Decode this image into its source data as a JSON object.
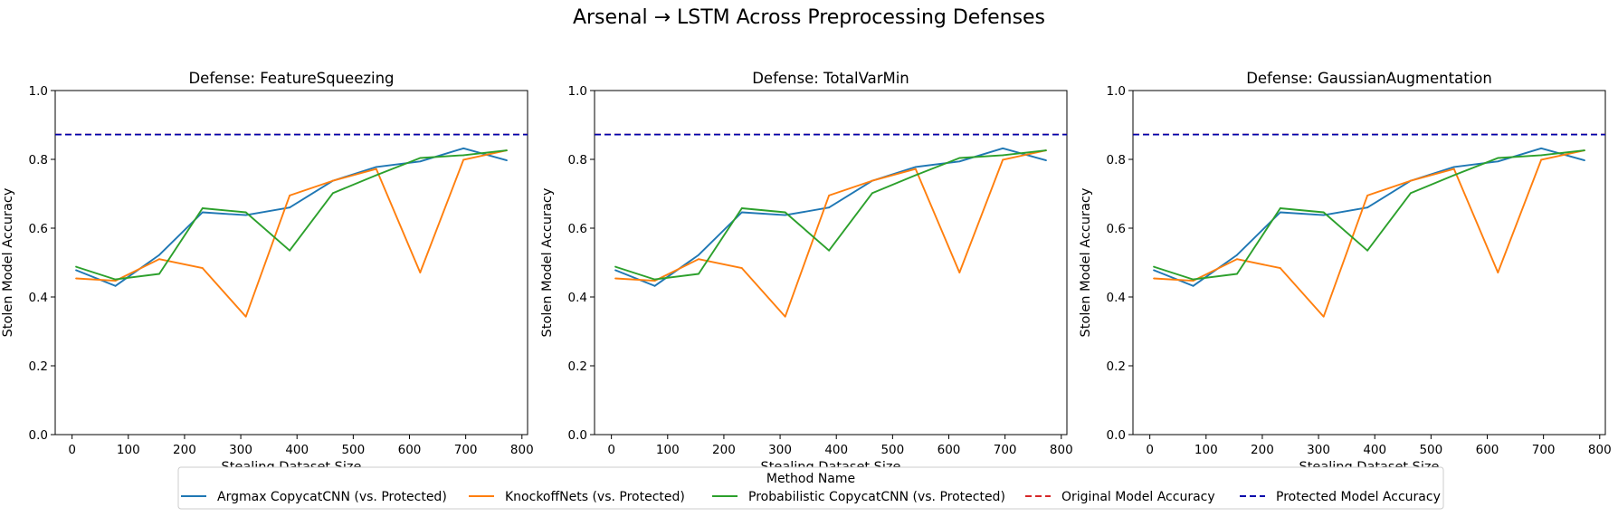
{
  "figure": {
    "title": "Arsenal → LSTM Across Preprocessing Defenses"
  },
  "legend": {
    "title": "Method Name",
    "entries": [
      {
        "label": "Argmax CopycatCNN (vs. Protected)",
        "color": "#1f77b4",
        "style": "solid"
      },
      {
        "label": "KnockoffNets (vs. Protected)",
        "color": "#ff7f0e",
        "style": "solid"
      },
      {
        "label": "Probabilistic CopycatCNN (vs. Protected)",
        "color": "#2ca02c",
        "style": "solid"
      },
      {
        "label": "Original Model Accuracy",
        "color": "#d62728",
        "style": "dashed"
      },
      {
        "label": "Protected Model Accuracy",
        "color": "#0000aa",
        "style": "dashed"
      }
    ],
    "placement": "bottom-center"
  },
  "chart_data": [
    {
      "type": "line",
      "title": "Defense: FeatureSqueezing",
      "xlabel": "Stealing Dataset Size",
      "ylabel": "Stolen Model Accuracy",
      "xlim": [
        -30,
        810
      ],
      "ylim": [
        0,
        1.0
      ],
      "xticks": [
        0,
        100,
        200,
        300,
        400,
        500,
        600,
        700,
        800
      ],
      "yticks": [
        0.0,
        0.2,
        0.4,
        0.6,
        0.8,
        1.0
      ],
      "x": [
        7,
        77,
        155,
        232,
        309,
        387,
        464,
        541,
        619,
        696,
        773
      ],
      "series": [
        {
          "name": "Argmax CopycatCNN (vs. Protected)",
          "color": "#1f77b4",
          "values": [
            0.478,
            0.432,
            0.522,
            0.646,
            0.638,
            0.66,
            0.738,
            0.778,
            0.794,
            0.832,
            0.797
          ]
        },
        {
          "name": "KnockoffNets (vs. Protected)",
          "color": "#ff7f0e",
          "values": [
            0.454,
            0.447,
            0.51,
            0.484,
            0.343,
            0.695,
            0.738,
            0.772,
            0.471,
            0.799,
            0.826
          ]
        },
        {
          "name": "Probabilistic CopycatCNN (vs. Protected)",
          "color": "#2ca02c",
          "values": [
            0.488,
            0.451,
            0.467,
            0.658,
            0.646,
            0.535,
            0.702,
            0.754,
            0.804,
            0.812,
            0.826
          ]
        }
      ],
      "hlines": [
        {
          "name": "Original Model Accuracy",
          "color": "#d62728",
          "value": 0.872
        },
        {
          "name": "Protected Model Accuracy",
          "color": "#0000aa",
          "value": 0.872
        }
      ]
    },
    {
      "type": "line",
      "title": "Defense: TotalVarMin",
      "xlabel": "Stealing Dataset Size",
      "ylabel": "Stolen Model Accuracy",
      "xlim": [
        -30,
        810
      ],
      "ylim": [
        0,
        1.0
      ],
      "xticks": [
        0,
        100,
        200,
        300,
        400,
        500,
        600,
        700,
        800
      ],
      "yticks": [
        0.0,
        0.2,
        0.4,
        0.6,
        0.8,
        1.0
      ],
      "x": [
        7,
        77,
        155,
        232,
        309,
        387,
        464,
        541,
        619,
        696,
        773
      ],
      "series": [
        {
          "name": "Argmax CopycatCNN (vs. Protected)",
          "color": "#1f77b4",
          "values": [
            0.478,
            0.432,
            0.522,
            0.646,
            0.638,
            0.66,
            0.738,
            0.778,
            0.794,
            0.832,
            0.797
          ]
        },
        {
          "name": "KnockoffNets (vs. Protected)",
          "color": "#ff7f0e",
          "values": [
            0.454,
            0.447,
            0.51,
            0.484,
            0.343,
            0.695,
            0.738,
            0.772,
            0.471,
            0.799,
            0.826
          ]
        },
        {
          "name": "Probabilistic CopycatCNN (vs. Protected)",
          "color": "#2ca02c",
          "values": [
            0.488,
            0.451,
            0.467,
            0.658,
            0.646,
            0.535,
            0.702,
            0.754,
            0.804,
            0.812,
            0.826
          ]
        }
      ],
      "hlines": [
        {
          "name": "Original Model Accuracy",
          "color": "#d62728",
          "value": 0.872
        },
        {
          "name": "Protected Model Accuracy",
          "color": "#0000aa",
          "value": 0.872
        }
      ]
    },
    {
      "type": "line",
      "title": "Defense: GaussianAugmentation",
      "xlabel": "Stealing Dataset Size",
      "ylabel": "Stolen Model Accuracy",
      "xlim": [
        -30,
        810
      ],
      "ylim": [
        0,
        1.0
      ],
      "xticks": [
        0,
        100,
        200,
        300,
        400,
        500,
        600,
        700,
        800
      ],
      "yticks": [
        0.0,
        0.2,
        0.4,
        0.6,
        0.8,
        1.0
      ],
      "x": [
        7,
        77,
        155,
        232,
        309,
        387,
        464,
        541,
        619,
        696,
        773
      ],
      "series": [
        {
          "name": "Argmax CopycatCNN (vs. Protected)",
          "color": "#1f77b4",
          "values": [
            0.478,
            0.432,
            0.522,
            0.646,
            0.638,
            0.66,
            0.738,
            0.778,
            0.794,
            0.832,
            0.797
          ]
        },
        {
          "name": "KnockoffNets (vs. Protected)",
          "color": "#ff7f0e",
          "values": [
            0.454,
            0.447,
            0.51,
            0.484,
            0.343,
            0.695,
            0.738,
            0.772,
            0.471,
            0.799,
            0.826
          ]
        },
        {
          "name": "Probabilistic CopycatCNN (vs. Protected)",
          "color": "#2ca02c",
          "values": [
            0.488,
            0.451,
            0.467,
            0.658,
            0.646,
            0.535,
            0.702,
            0.754,
            0.804,
            0.812,
            0.826
          ]
        }
      ],
      "hlines": [
        {
          "name": "Original Model Accuracy",
          "color": "#d62728",
          "value": 0.872
        },
        {
          "name": "Protected Model Accuracy",
          "color": "#0000aa",
          "value": 0.872
        }
      ]
    }
  ]
}
